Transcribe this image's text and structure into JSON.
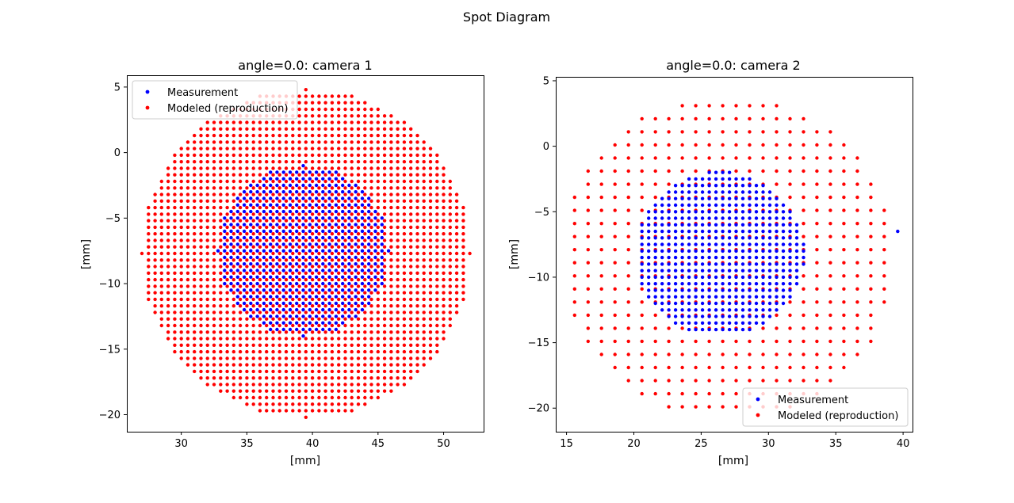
{
  "figure": {
    "title": "Spot Diagram"
  },
  "chart_data": [
    {
      "type": "scatter",
      "title": "angle=0.0: camera 1",
      "xlabel": "[mm]",
      "ylabel": "[mm]",
      "xlim": [
        25.85,
        53.05
      ],
      "ylim": [
        -21.3,
        5.9
      ],
      "xticks": [
        30,
        35,
        40,
        45,
        50
      ],
      "yticks": [
        5,
        0,
        -5,
        -10,
        -15,
        -20
      ],
      "grid": false,
      "legend": {
        "position": "upper-left",
        "entries": [
          {
            "label": "Measurement",
            "color": "#0000ff"
          },
          {
            "label": "Modeled (reproduction)",
            "color": "#ff0000"
          }
        ]
      },
      "series": [
        {
          "name": "Measurement",
          "color": "#0000ff",
          "kind": "filled-disc",
          "center": [
            39.3,
            -7.5
          ],
          "radius": 6.5,
          "pitch": 0.5
        },
        {
          "name": "Modeled (reproduction)",
          "color": "#ff0000",
          "kind": "grid-disc",
          "center": [
            39.5,
            -7.7
          ],
          "radius": 12.5,
          "pitch": 0.5
        }
      ]
    },
    {
      "type": "scatter",
      "title": "angle=0.0: camera 2",
      "xlabel": "[mm]",
      "ylabel": "[mm]",
      "xlim": [
        14.2,
        40.7
      ],
      "ylim": [
        -21.8,
        5.3
      ],
      "xticks": [
        15,
        20,
        25,
        30,
        35,
        40
      ],
      "yticks": [
        5,
        0,
        -5,
        -10,
        -15,
        -20
      ],
      "grid": false,
      "legend": {
        "position": "lower-right",
        "entries": [
          {
            "label": "Measurement",
            "color": "#0000ff"
          },
          {
            "label": "Modeled (reproduction)",
            "color": "#ff0000"
          }
        ]
      },
      "series": [
        {
          "name": "Measurement",
          "color": "#0000ff",
          "kind": "filled-disc",
          "center": [
            26.4,
            -8.2
          ],
          "radius": 6.3,
          "pitch": 0.5,
          "outliers": [
            [
              39.6,
              -6.5
            ]
          ]
        },
        {
          "name": "Modeled (reproduction)",
          "color": "#ff0000",
          "kind": "grid-disc",
          "center": [
            27.0,
            -8.5
          ],
          "radius": 12.4,
          "pitch": 1.0
        }
      ]
    }
  ]
}
